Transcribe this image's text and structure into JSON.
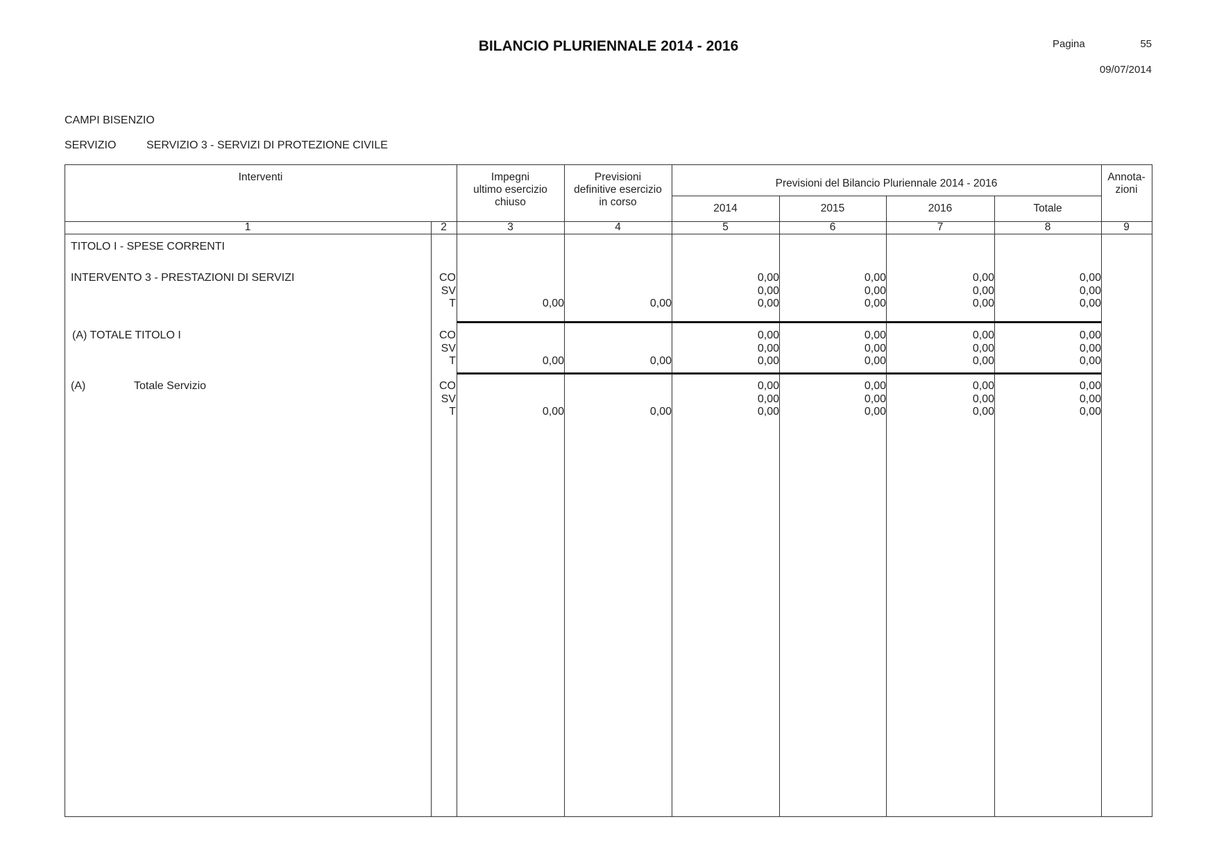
{
  "header": {
    "title": "BILANCIO PLURIENNALE 2014 - 2016",
    "page_label": "Pagina",
    "page_number": "55",
    "date": "09/07/2014"
  },
  "entity": "CAMPI BISENZIO",
  "servizio": {
    "label": "SERVIZIO",
    "value": "SERVIZIO 3 - SERVIZI DI PROTEZIONE CIVILE"
  },
  "table": {
    "headers": {
      "interventi": "Interventi",
      "impegni": "Impegni\nultimo esercizio\nchiuso",
      "previsioni_definitive": "Previsioni\ndefinitive esercizio\nin corso",
      "previsioni_group": "Previsioni del Bilancio Pluriennale 2014 - 2016",
      "y2014": "2014",
      "y2015": "2015",
      "y2016": "2016",
      "totale": "Totale",
      "annotazioni": "Annota-\nzioni"
    },
    "column_numbers": [
      "1",
      "2",
      "3",
      "4",
      "5",
      "6",
      "7",
      "8",
      "9"
    ],
    "section_heading": "TITOLO I - SPESE CORRENTI",
    "rows": [
      {
        "label": "INTERVENTO 3 - PRESTAZIONI DI SERVIZI",
        "label2": "",
        "lines": [
          {
            "code": "CO",
            "values": [
              "",
              "",
              "0,00",
              "0,00",
              "0,00",
              "0,00"
            ]
          },
          {
            "code": "SV",
            "values": [
              "",
              "",
              "0,00",
              "0,00",
              "0,00",
              "0,00"
            ]
          },
          {
            "code": "T",
            "values": [
              "0,00",
              "0,00",
              "0,00",
              "0,00",
              "0,00",
              "0,00"
            ]
          }
        ]
      },
      {
        "label": "(A) TOTALE TITOLO I",
        "label2": "",
        "lines": [
          {
            "code": "CO",
            "values": [
              "",
              "",
              "0,00",
              "0,00",
              "0,00",
              "0,00"
            ]
          },
          {
            "code": "SV",
            "values": [
              "",
              "",
              "0,00",
              "0,00",
              "0,00",
              "0,00"
            ]
          },
          {
            "code": "T",
            "values": [
              "0,00",
              "0,00",
              "0,00",
              "0,00",
              "0,00",
              "0,00"
            ]
          }
        ]
      },
      {
        "label": "(A)",
        "label2": "Totale Servizio",
        "lines": [
          {
            "code": "CO",
            "values": [
              "",
              "",
              "0,00",
              "0,00",
              "0,00",
              "0,00"
            ]
          },
          {
            "code": "SV",
            "values": [
              "",
              "",
              "0,00",
              "0,00",
              "0,00",
              "0,00"
            ]
          },
          {
            "code": "T",
            "values": [
              "0,00",
              "0,00",
              "0,00",
              "0,00",
              "0,00",
              "0,00"
            ]
          }
        ]
      }
    ]
  }
}
